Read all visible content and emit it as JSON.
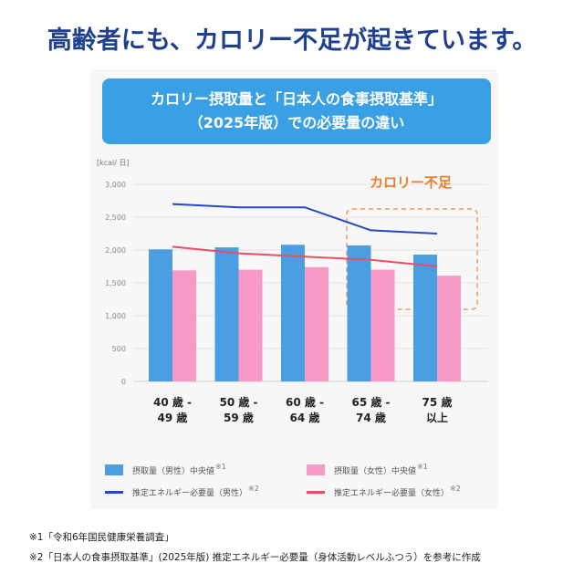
{
  "headline": "高齢者にも、カロリー不足が起きています。",
  "banner": {
    "line1": "カロリー摂取量と「日本人の食事摂取基準」",
    "line2": "（2025年版）での必要量の違い"
  },
  "chart_data": {
    "type": "bar",
    "ylabel": "[kcal/ 日]",
    "ylim": [
      0,
      3000
    ],
    "yticks": [
      0,
      500,
      1000,
      1500,
      2000,
      2500,
      3000
    ],
    "ytick_labels": [
      "0",
      "500",
      "1,000",
      "1,500",
      "2,000",
      "2,500",
      "3,000"
    ],
    "categories": [
      [
        "40 歳 -",
        "49 歳"
      ],
      [
        "50 歳 -",
        "59 歳"
      ],
      [
        "60 歳 -",
        "64 歳"
      ],
      [
        "65 歳 -",
        "74 歳"
      ],
      [
        "75 歳",
        "以上"
      ]
    ],
    "grid": true,
    "legend_placement": "bottom",
    "series": [
      {
        "name": "摂取量（男性）中央値",
        "note": "※1",
        "kind": "bar",
        "color": "#4a9fe3",
        "values": [
          2010,
          2040,
          2080,
          2070,
          1930
        ]
      },
      {
        "name": "摂取量（女性）中央値",
        "note": "※1",
        "kind": "bar",
        "color": "#f79ac7",
        "values": [
          1690,
          1700,
          1740,
          1700,
          1610
        ]
      },
      {
        "name": "推定エネルギー必要量（男性）",
        "note": "※2",
        "kind": "line",
        "color": "#2548c8",
        "values": [
          2700,
          2650,
          2650,
          2300,
          2250
        ]
      },
      {
        "name": "推定エネルギー必要量（女性）",
        "note": "※2",
        "kind": "line",
        "color": "#ea4d64",
        "values": [
          2050,
          1950,
          1900,
          1850,
          1750
        ]
      }
    ],
    "annotation": {
      "text": "カロリー不足",
      "color": "#ef7d2f",
      "highlight_categories": [
        3,
        4
      ]
    }
  },
  "footnotes": [
    "※1「令和6年国民健康栄養調査」",
    "※2「日本人の食事摂取基準」(2025年版) 推定エネルギー必要量（身体活動レベルふつう）を参考に作成"
  ]
}
